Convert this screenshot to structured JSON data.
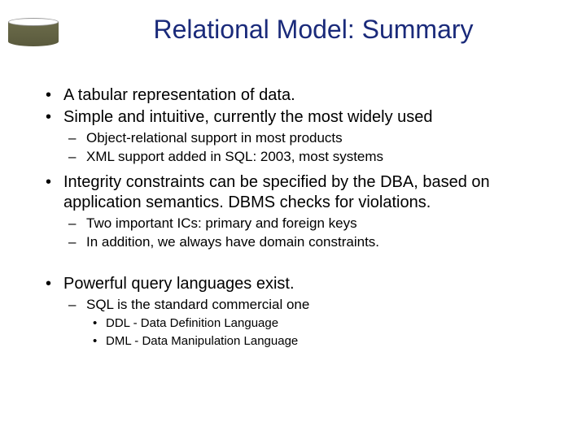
{
  "title": "Relational Model: Summary",
  "title_color": "#1a2a7a",
  "title_fontsize": 32,
  "background_color": "#ffffff",
  "body_color": "#000000",
  "font_family": "Verdana, Arial, sans-serif",
  "bullets": {
    "b1": "A tabular representation of data.",
    "b2": "Simple and intuitive, currently the most widely used",
    "b2_sub1": "Object-relational support in most products",
    "b2_sub2": "XML support added in SQL: 2003, most systems",
    "b3": "Integrity constraints can be specified by the DBA, based on application semantics.  DBMS checks for violations.",
    "b3_sub1": "Two important ICs: primary and foreign keys",
    "b3_sub2": "In addition, we always have domain constraints.",
    "b4": "Powerful query languages exist.",
    "b4_sub1": "SQL is the standard commercial one",
    "b4_sub1_a": "DDL - Data Definition Language",
    "b4_sub1_b": "DML - Data Manipulation Language"
  },
  "level_fontsizes": {
    "main": 20,
    "sub": 17,
    "subsub": 15
  },
  "bullet_markers": {
    "main": "•",
    "sub": "–",
    "subsub": "•"
  },
  "icon": {
    "cylinder_color": "#5a5a3d",
    "top_color": "#ffffff"
  }
}
